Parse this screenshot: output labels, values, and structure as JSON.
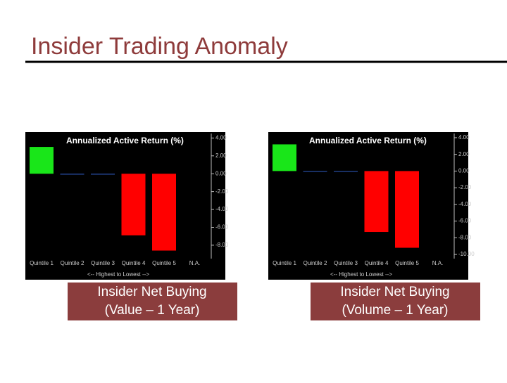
{
  "title": "Insider Trading Anomaly",
  "captions": [
    "Insider Net Buying (Value – 1 Year)",
    "Insider Net Buying (Volume – 1 Year)"
  ],
  "chart_data": [
    {
      "type": "bar",
      "title": "Annualized Active Return (%)",
      "x_label": "<-- Highest to Lowest -->",
      "categories": [
        "Quintile 1",
        "Quintile 2",
        "Quintile 3",
        "Quintile 4",
        "Quintile 5",
        "N.A."
      ],
      "values": [
        3.0,
        -0.1,
        -0.1,
        -6.9,
        -8.6,
        null
      ],
      "colors": [
        "#19e619",
        "#2a4fa8",
        "#2a4fa8",
        "#ff0000",
        "#ff0000",
        null
      ],
      "ylim": [
        -9.5,
        4.5
      ],
      "yticks": [
        {
          "value": 4,
          "label": "4.00"
        },
        {
          "value": 2,
          "label": "2.00"
        },
        {
          "value": 0,
          "label": "0.00"
        },
        {
          "value": -2,
          "label": "-2.00"
        },
        {
          "value": -4,
          "label": "-4.00"
        },
        {
          "value": -6,
          "label": "-6.00"
        },
        {
          "value": -8,
          "label": "-8.00"
        }
      ]
    },
    {
      "type": "bar",
      "title": "Annualized Active Return (%)",
      "x_label": "<-- Highest to Lowest -->",
      "categories": [
        "Quintile 1",
        "Quintile 2",
        "Quintile 3",
        "Quintile 4",
        "Quintile 5",
        "N.A."
      ],
      "values": [
        3.2,
        -0.1,
        -0.1,
        -7.3,
        -9.2,
        null
      ],
      "colors": [
        "#19e619",
        "#2a4fa8",
        "#2a4fa8",
        "#ff0000",
        "#ff0000",
        null
      ],
      "ylim": [
        -10.5,
        4.5
      ],
      "yticks": [
        {
          "value": 4,
          "label": "4.00"
        },
        {
          "value": 2,
          "label": "2.00"
        },
        {
          "value": 0,
          "label": "0.00"
        },
        {
          "value": -2,
          "label": "-2.00"
        },
        {
          "value": -4,
          "label": "-4.00"
        },
        {
          "value": -6,
          "label": "-6.00"
        },
        {
          "value": -8,
          "label": "-8.00"
        },
        {
          "value": -10,
          "label": "-10.00"
        }
      ]
    }
  ]
}
